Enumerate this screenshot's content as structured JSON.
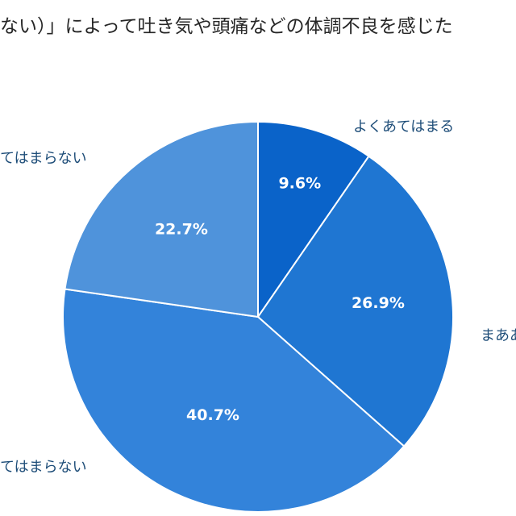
{
  "chart_data": {
    "type": "pie",
    "title": "ない）」によって吐き気や頭痛などの体調不良を感じた",
    "start_angle_deg": 0,
    "direction": "clockwise",
    "legend": "none",
    "slices": [
      {
        "label": "よくあてはまる",
        "value": 9.6,
        "display": "9.6%",
        "color": "#0a63c9"
      },
      {
        "label": "まああ",
        "value": 26.9,
        "display": "26.9%",
        "color": "#1f76d2"
      },
      {
        "label": "てはまらない",
        "value": 40.7,
        "display": "40.7%",
        "color": "#3383da"
      },
      {
        "label": "てはまらない",
        "value": 22.7,
        "display": "22.7%",
        "color": "#4f93db"
      }
    ]
  }
}
